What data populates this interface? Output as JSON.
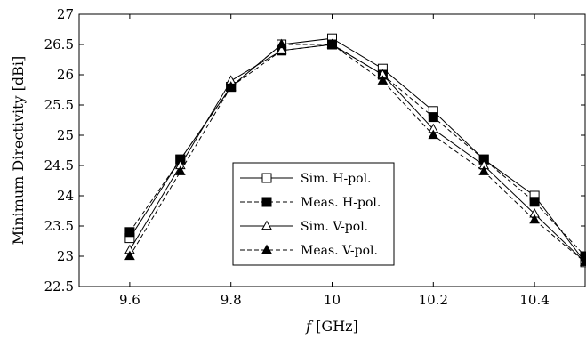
{
  "chart_data": {
    "type": "line",
    "xlabel_italic": "f",
    "xlabel_rest": " [GHz]",
    "ylabel": "Minimum Directivity [dBi]",
    "xlim": [
      9.5,
      10.5
    ],
    "ylim": [
      22.5,
      27
    ],
    "xticks": [
      9.6,
      9.8,
      10,
      10.2,
      10.4
    ],
    "xtick_labels": [
      "9.6",
      "9.8",
      "10",
      "10.2",
      "10.4"
    ],
    "yticks": [
      22.5,
      23,
      23.5,
      24,
      24.5,
      25,
      25.5,
      26,
      26.5,
      27
    ],
    "ytick_labels": [
      "22.5",
      "23",
      "23.5",
      "24",
      "24.5",
      "25",
      "25.5",
      "26",
      "26.5",
      "27"
    ],
    "grid": false,
    "legend_position": "bottom-center",
    "x": [
      9.6,
      9.7,
      9.8,
      9.9,
      10.0,
      10.1,
      10.2,
      10.3,
      10.4,
      10.5
    ],
    "series": [
      {
        "name": "Sim. H-pol.",
        "marker": "square-open",
        "dash": "solid",
        "values": [
          23.3,
          24.6,
          25.8,
          26.5,
          26.6,
          26.1,
          25.4,
          24.6,
          24.0,
          22.9
        ]
      },
      {
        "name": "Meas. H-pol.",
        "marker": "square-filled",
        "dash": "dashed",
        "values": [
          23.4,
          24.6,
          25.8,
          26.4,
          26.5,
          26.0,
          25.3,
          24.6,
          23.9,
          23.0
        ]
      },
      {
        "name": "Sim. V-pol.",
        "marker": "triangle-open",
        "dash": "solid",
        "values": [
          23.1,
          24.5,
          25.9,
          26.4,
          26.5,
          26.0,
          25.1,
          24.5,
          23.7,
          22.9
        ]
      },
      {
        "name": "Meas. V-pol.",
        "marker": "triangle-filled",
        "dash": "dashed",
        "values": [
          23.0,
          24.4,
          25.8,
          26.5,
          26.5,
          25.9,
          25.0,
          24.4,
          23.6,
          22.9
        ]
      }
    ]
  }
}
